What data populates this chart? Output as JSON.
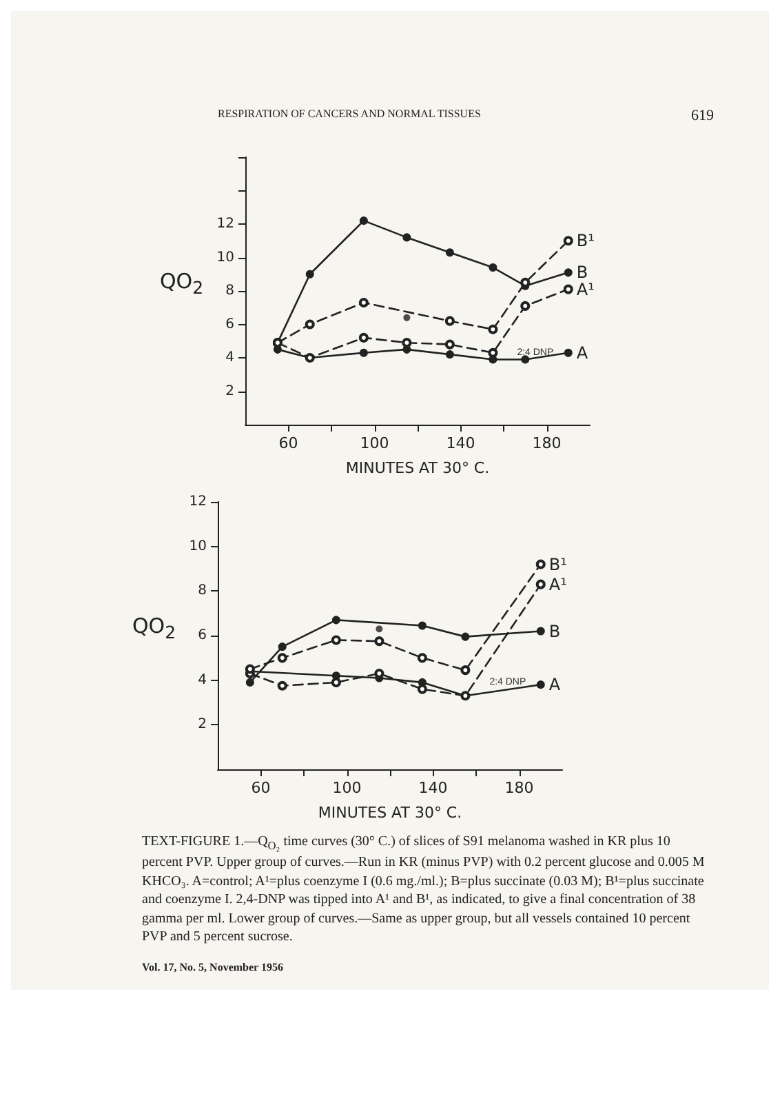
{
  "chart_data": [
    {
      "type": "line",
      "xlabel": "MINUTES AT 30° C.",
      "ylabel": "QO$_{2}$",
      "xlim": [
        40,
        200
      ],
      "xticks": [
        60,
        {
          "value": 80,
          "label": null
        },
        100,
        {
          "value": 120,
          "label": null
        },
        140,
        {
          "value": 160,
          "label": null
        },
        180
      ],
      "ylim": [
        0,
        16
      ],
      "yticks": [
        2,
        4,
        6,
        8,
        10,
        12,
        {
          "value": 14,
          "label": null
        },
        {
          "value": 16,
          "label": null
        }
      ],
      "grid": false,
      "legend": false,
      "marker": "circle",
      "annotations": [
        "RESPIRATION OF CANCERS AND NORMAL TISSUES",
        "619",
        {
          "text": "2:4 DNP",
          "x": 163,
          "y": 4.3
        }
      ],
      "series": [
        {
          "name": "A",
          "color": "#222222",
          "line_style": "solid",
          "x": [
            55,
            70,
            95,
            115,
            135,
            155,
            170,
            190
          ],
          "values": [
            4.5,
            4.0,
            4.3,
            4.5,
            4.2,
            3.9,
            3.9,
            4.3
          ]
        },
        {
          "name": "A¹",
          "color": "#222222",
          "line_style": "dashed",
          "x": [
            55,
            70,
            95,
            115,
            135,
            155,
            170,
            190
          ],
          "values": [
            4.9,
            4.0,
            5.2,
            4.9,
            4.8,
            4.3,
            7.1,
            8.1
          ]
        },
        {
          "name": "B",
          "color": "#222222",
          "line_style": "solid",
          "x": [
            55,
            70,
            95,
            115,
            135,
            155,
            170,
            190
          ],
          "values": [
            4.9,
            9.0,
            12.2,
            11.2,
            10.3,
            9.4,
            8.3,
            9.1
          ]
        },
        {
          "name": "B¹",
          "color": "#222222",
          "line_style": "dashed",
          "x": [
            55,
            70,
            95,
            135,
            155,
            170,
            190
          ],
          "values": [
            4.9,
            6.0,
            7.3,
            6.2,
            5.7,
            8.5,
            11.0
          ]
        },
        {
          "type": "scatter",
          "color": "#222222",
          "x": [
            115
          ],
          "values": [
            6.4
          ]
        }
      ]
    },
    {
      "type": "line",
      "xlabel": "MINUTES AT 30° C.",
      "ylabel": "QO$_{2}$",
      "xlim": [
        40,
        200
      ],
      "xticks": [
        60,
        {
          "value": 80,
          "label": null
        },
        100,
        {
          "value": 120,
          "label": null
        },
        140,
        {
          "value": 160,
          "label": null
        },
        180
      ],
      "ylim": [
        0,
        12
      ],
      "yticks": [
        2,
        4,
        6,
        8,
        10,
        12
      ],
      "grid": false,
      "legend": false,
      "marker": "circle",
      "annotations": [
        {
          "text": "2:4 DNP",
          "x": 163,
          "y": 3.9
        },
        "TEXT-FIGURE 1.—Q$_{O₂}$ time curves (30° C.) of slices of S91 melanoma washed in KR plus 10 percent PVP. Upper group of curves.—Run in KR (minus PVP) with 0.2 percent glucose and 0.005 M KHCO₃. A=control; A¹=plus coenzyme I (0.6 mg./ml.); B=plus succinate (0.03 M); B¹=plus succinate and coenzyme I. 2,4-DNP was tipped into A¹ and B¹, as indicated, to give a final concentration of 38 gamma per ml. Lower group of curves.—Same as upper group, but all vessels contained 10 percent PVP and 5 percent sucrose.",
        "Vol. 17, No. 5, November 1956"
      ],
      "series": [
        {
          "name": "A",
          "color": "#222222",
          "line_style": "solid",
          "x": [
            55,
            95,
            115,
            135,
            155,
            190
          ],
          "values": [
            4.4,
            4.2,
            4.1,
            3.9,
            3.3,
            3.8
          ]
        },
        {
          "name": "A¹",
          "color": "#222222",
          "line_style": "dashed",
          "x": [
            55,
            70,
            95,
            115,
            135,
            155,
            190
          ],
          "values": [
            4.3,
            3.75,
            3.9,
            4.3,
            3.6,
            3.3,
            8.3
          ]
        },
        {
          "name": "B",
          "color": "#222222",
          "line_style": "solid",
          "x": [
            55,
            70,
            95,
            135,
            155,
            190
          ],
          "values": [
            3.9,
            5.5,
            6.7,
            6.45,
            5.95,
            6.2
          ]
        },
        {
          "name": "B¹",
          "color": "#222222",
          "line_style": "dashed",
          "x": [
            55,
            70,
            95,
            115,
            135,
            155,
            190
          ],
          "values": [
            4.5,
            5.0,
            5.8,
            5.75,
            5.0,
            4.45,
            9.2
          ]
        },
        {
          "type": "scatter",
          "color": "#222222",
          "x": [
            115
          ],
          "values": [
            6.3
          ]
        }
      ]
    }
  ]
}
